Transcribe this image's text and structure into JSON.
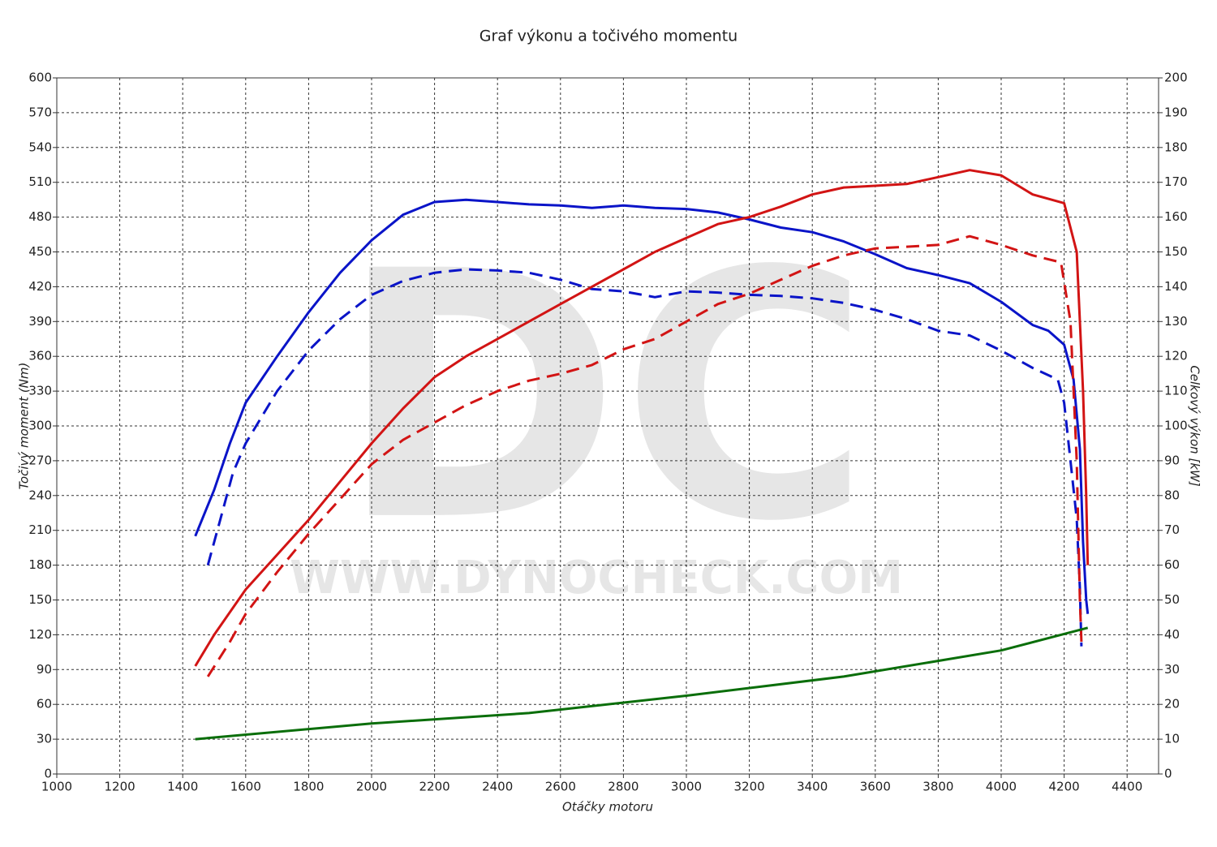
{
  "chart_data": {
    "type": "line",
    "title": "Graf výkonu a točivého momentu",
    "xlabel": "Otáčky motoru",
    "ylabel": "Točivý moment (Nm)",
    "y2label": "Celkový výkon [kW]",
    "watermark": "DC",
    "watermark_url": "WWW.DYNOCHECK.COM",
    "xlim": [
      1000,
      4500
    ],
    "xticks": [
      1000,
      1200,
      1400,
      1600,
      1800,
      2000,
      2200,
      2400,
      2600,
      2800,
      3000,
      3200,
      3400,
      3600,
      3800,
      4000,
      4200,
      4400
    ],
    "ylim": [
      0,
      600
    ],
    "yticks": [
      0,
      30,
      60,
      90,
      120,
      150,
      180,
      210,
      240,
      270,
      300,
      330,
      360,
      390,
      420,
      450,
      480,
      510,
      540,
      570,
      600
    ],
    "y2lim": [
      0,
      200
    ],
    "y2ticks": [
      0,
      10,
      20,
      30,
      40,
      50,
      60,
      70,
      80,
      90,
      100,
      110,
      120,
      130,
      140,
      150,
      160,
      170,
      180,
      190,
      200
    ],
    "grid": true,
    "series": [
      {
        "color": "#0a14c8",
        "dash": false,
        "x": [
          1440,
          1500,
          1550,
          1600,
          1700,
          1800,
          1900,
          2000,
          2100,
          2200,
          2300,
          2400,
          2500,
          2600,
          2700,
          2800,
          2900,
          3000,
          3100,
          3200,
          3300,
          3400,
          3500,
          3600,
          3700,
          3800,
          3900,
          4000,
          4100,
          4150,
          4200,
          4230,
          4250,
          4260,
          4270,
          4275
        ],
        "values": [
          205,
          245,
          285,
          320,
          360,
          398,
          432,
          460,
          482,
          493,
          495,
          493,
          491,
          490,
          488,
          490,
          488,
          487,
          484,
          478,
          471,
          467,
          459,
          448,
          436,
          430,
          423,
          407,
          387,
          382,
          370,
          340,
          280,
          200,
          150,
          138
        ]
      },
      {
        "color": "#0a14c8",
        "dash": true,
        "x": [
          1480,
          1520,
          1560,
          1600,
          1700,
          1800,
          1900,
          2000,
          2100,
          2200,
          2300,
          2400,
          2500,
          2600,
          2700,
          2800,
          2900,
          3000,
          3100,
          3200,
          3300,
          3400,
          3500,
          3600,
          3700,
          3800,
          3900,
          4000,
          4100,
          4180,
          4200,
          4220,
          4240,
          4250,
          4255
        ],
        "values": [
          180,
          220,
          260,
          285,
          330,
          365,
          392,
          413,
          425,
          432,
          435,
          434,
          432,
          426,
          418,
          416,
          411,
          416,
          415,
          413,
          412,
          410,
          406,
          400,
          392,
          382,
          378,
          365,
          350,
          340,
          320,
          270,
          220,
          160,
          110
        ]
      },
      {
        "color": "#d21414",
        "dash": false,
        "axis": "y2",
        "x": [
          1440,
          1500,
          1600,
          1700,
          1800,
          1900,
          2000,
          2100,
          2200,
          2300,
          2400,
          2500,
          2600,
          2700,
          2800,
          2900,
          3000,
          3100,
          3200,
          3300,
          3400,
          3500,
          3600,
          3700,
          3800,
          3900,
          4000,
          4100,
          4200,
          4240,
          4260,
          4270,
          4275
        ],
        "values": [
          31,
          40,
          53,
          63,
          73,
          84,
          95,
          105,
          114,
          120,
          125,
          130,
          135,
          140,
          145,
          150,
          154,
          158,
          160,
          163,
          166.5,
          168.5,
          169,
          169.5,
          171.5,
          173.5,
          172,
          166.5,
          164,
          150,
          110,
          80,
          60
        ]
      },
      {
        "color": "#d21414",
        "dash": true,
        "axis": "y2",
        "x": [
          1480,
          1550,
          1600,
          1700,
          1800,
          1900,
          2000,
          2100,
          2200,
          2300,
          2400,
          2500,
          2600,
          2700,
          2800,
          2900,
          3000,
          3100,
          3200,
          3300,
          3400,
          3500,
          3600,
          3700,
          3800,
          3900,
          4000,
          4100,
          4190,
          4220,
          4240,
          4250,
          4255
        ],
        "values": [
          28,
          38,
          46,
          58,
          69,
          79,
          89,
          96,
          101,
          106,
          110,
          113,
          115,
          117.5,
          122,
          125,
          130,
          135,
          138,
          142,
          146,
          149,
          151,
          151.5,
          152,
          154.5,
          152,
          149,
          147,
          130,
          90,
          50,
          38
        ]
      },
      {
        "color": "#0a6e0a",
        "dash": false,
        "axis": "y2",
        "x": [
          1440,
          2000,
          2500,
          3000,
          3500,
          4000,
          4275
        ],
        "values": [
          10,
          14.5,
          17.5,
          22.5,
          28,
          35.5,
          42
        ]
      }
    ]
  }
}
